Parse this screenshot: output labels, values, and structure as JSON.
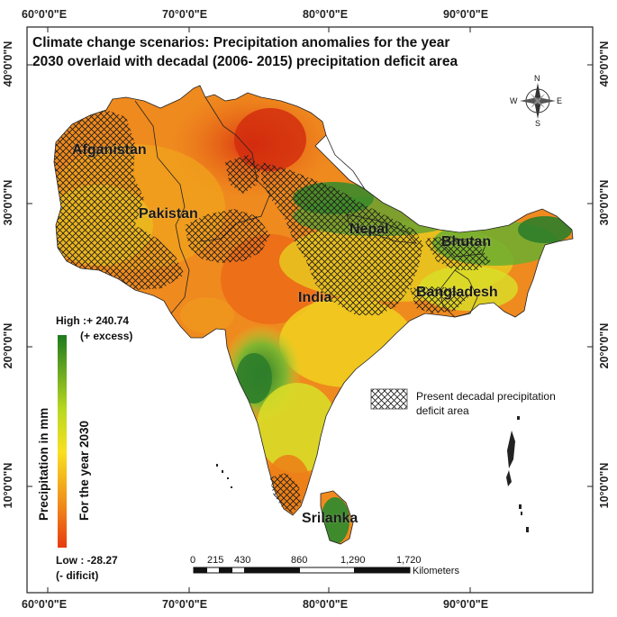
{
  "title": {
    "line1": "Climate change scenarios: Precipitation anomalies for the year",
    "line2": "2030 overlaid with decadal (2006- 2015) precipitation deficit area"
  },
  "axes": {
    "longitudes": [
      "60°0'0\"E",
      "70°0'0\"E",
      "80°0'0\"E",
      "90°0'0\"E"
    ],
    "latitudes": [
      "40°0'0\"N",
      "30°0'0\"N",
      "20°0'0\"N",
      "10°0'0\"N"
    ]
  },
  "countries": {
    "afganistan": "Afganistan",
    "pakistan": "Pakistan",
    "india": "India",
    "nepal": "Nepal",
    "bhutan": "Bhutan",
    "bangladesh": "Bangladesh",
    "srilanka": "Srilanka"
  },
  "legend": {
    "high": "High :+ 240.74",
    "high_note": "(+ excess)",
    "low": "Low : -28.27",
    "low_note": "(- dificit)",
    "axis_title": "Precipitation in mm",
    "axis_subtitle": "For the year 2030",
    "deficit_label_line1": "Present decadal precipitation",
    "deficit_label_line2": "deficit area",
    "high_color": "#1e7a1e",
    "low_color": "#e83a10"
  },
  "compass": {
    "n": "N",
    "s": "S",
    "e": "E",
    "w": "W"
  },
  "scalebar": {
    "ticks": [
      "0",
      "215",
      "430",
      "860",
      "1,290",
      "1,720"
    ],
    "unit": "Kilometers"
  },
  "colors": {
    "deficit_hatch": "#1a1a1a",
    "dry": "#e8501a",
    "medium": "#f0a020",
    "wet": "#3a8a2a"
  }
}
